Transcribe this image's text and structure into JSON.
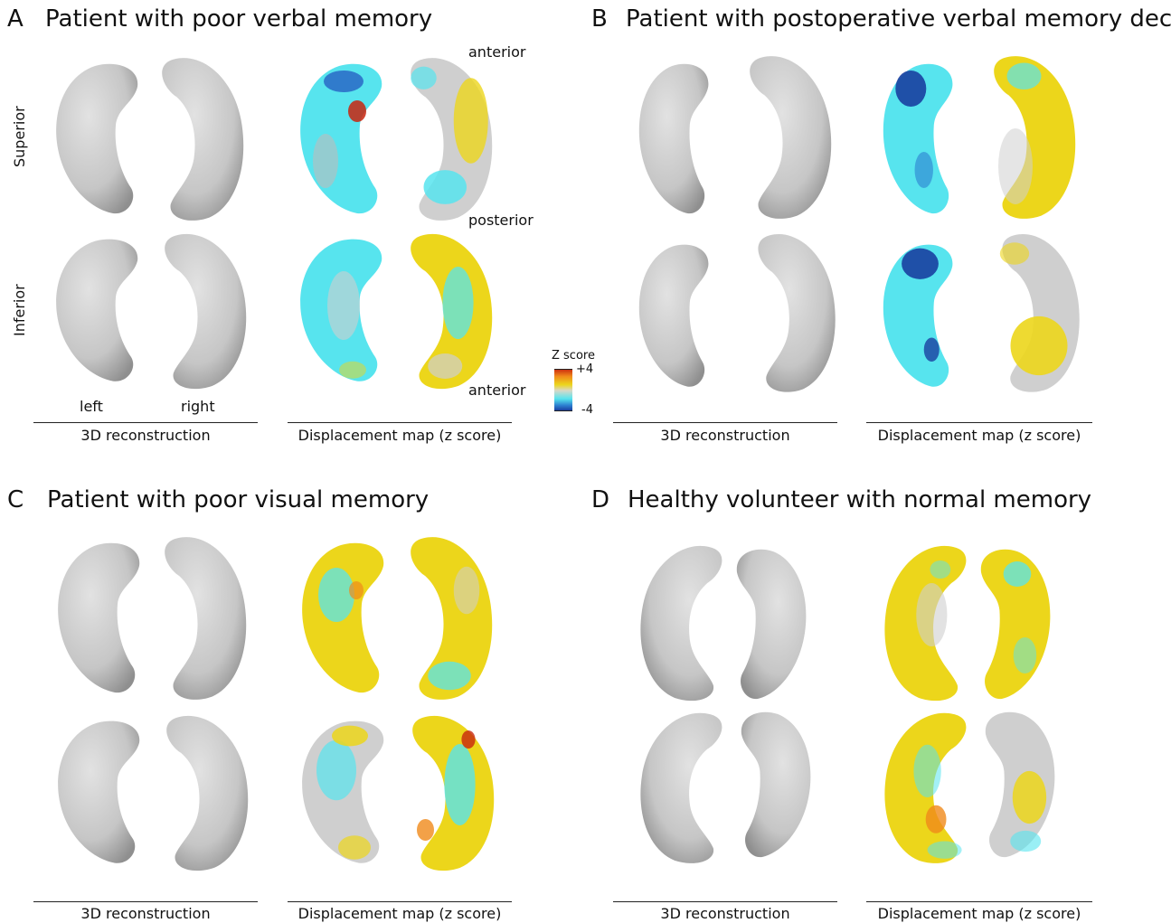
{
  "panels": [
    {
      "letter": "A",
      "title": "Patient with poor verbal memory"
    },
    {
      "letter": "B",
      "title": "Patient with postoperative verbal memory decline"
    },
    {
      "letter": "C",
      "title": "Patient with poor visual memory"
    },
    {
      "letter": "D",
      "title": "Healthy volunteer with normal memory"
    }
  ],
  "row_labels": {
    "superior": "Superior",
    "inferior": "Inferior"
  },
  "side_labels": {
    "left": "left",
    "right": "right"
  },
  "orientation_labels": {
    "anterior_top": "anterior",
    "posterior": "posterior",
    "anterior_bottom": "anterior"
  },
  "captions": {
    "recon": "3D reconstruction",
    "disp": "Displacement map (z score)"
  },
  "colorbar": {
    "title": "Z score",
    "max": "+4",
    "min": "-4"
  },
  "colors": {
    "gray": "#c9c9c9",
    "cyan": "#57e4ee",
    "yellow": "#ecd61b",
    "blue": "#1a3fa0",
    "red": "#c8250e"
  }
}
